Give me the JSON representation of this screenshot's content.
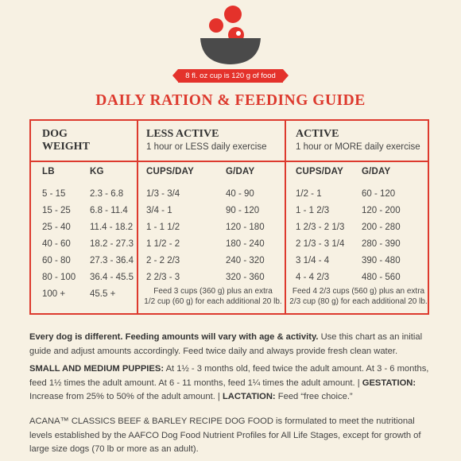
{
  "header": {
    "ribbon_text": "8 fl. oz cup is 120 g of food",
    "title": "DAILY RATION & FEEDING GUIDE",
    "icon": "bowl-icon",
    "colors": {
      "accent": "#dd3a2e",
      "bowl": "#4a4a4a",
      "background": "#f7f1e3"
    }
  },
  "table": {
    "weight_header_line1": "DOG",
    "weight_header_line2": "WEIGHT",
    "less_active": {
      "title": "LESS ACTIVE",
      "subtitle": "1 hour or LESS daily exercise"
    },
    "active": {
      "title": "ACTIVE",
      "subtitle": "1 hour or MORE daily exercise"
    },
    "col_lb": "LB",
    "col_kg": "KG",
    "col_cups_less": "CUPS/DAY",
    "col_g_less": "G/DAY",
    "col_cups_active": "CUPS/DAY",
    "col_g_active": "G/DAY",
    "rows": [
      {
        "lb": "5 - 15",
        "kg": "2.3 - 6.8",
        "less_cups": "1/3 - 3/4",
        "less_g": "40 - 90",
        "act_cups": "1/2 - 1",
        "act_g": "60 - 120"
      },
      {
        "lb": "15 - 25",
        "kg": "6.8 - 11.4",
        "less_cups": "3/4 - 1",
        "less_g": "90 - 120",
        "act_cups": "1 - 1 2/3",
        "act_g": "120 - 200"
      },
      {
        "lb": "25 - 40",
        "kg": "11.4 - 18.2",
        "less_cups": "1 - 1 1/2",
        "less_g": "120 - 180",
        "act_cups": "1 2/3 - 2 1/3",
        "act_g": "200 - 280"
      },
      {
        "lb": "40 - 60",
        "kg": "18.2 - 27.3",
        "less_cups": "1 1/2 - 2",
        "less_g": "180 - 240",
        "act_cups": "2 1/3 - 3 1/4",
        "act_g": "280 - 390"
      },
      {
        "lb": "60 - 80",
        "kg": "27.3 - 36.4",
        "less_cups": "2 - 2 2/3",
        "less_g": "240 - 320",
        "act_cups": "3 1/4 - 4",
        "act_g": "390 - 480"
      },
      {
        "lb": "80 - 100",
        "kg": "36.4 - 45.5",
        "less_cups": "2 2/3 - 3",
        "less_g": "320 - 360",
        "act_cups": "4 - 4 2/3",
        "act_g": "480 - 560"
      },
      {
        "lb": "100 +",
        "kg": "45.5 +",
        "less_cups": "",
        "less_g": "",
        "act_cups": "",
        "act_g": ""
      }
    ],
    "less_note_line1": "Feed 3 cups (360 g) plus an extra",
    "less_note_line2": "1/2 cup (60 g) for each additional 20 lb.",
    "active_note_line1": "Feed 4 2/3 cups (560 g) plus an extra",
    "active_note_line2": "2/3 cup (80 g) for each additional 20 lb."
  },
  "text": {
    "intro_bold": "Every dog is different. Feeding amounts will vary with age & activity.",
    "intro_rest": " Use this chart as an initial guide and adjust amounts accordingly. Feed twice daily and always provide fresh clean water.",
    "puppies_label": "SMALL AND MEDIUM PUPPIES:",
    "puppies_text": " At 1½ - 3 months old, feed twice the adult amount. At 3 - 6 months, feed 1½ times the adult amount. At 6 - 11 months, feed 1¼ times the adult amount.  |  ",
    "gestation_label": "GESTATION:",
    "gestation_text": " Increase from 25% to 50% of the adult amount.  |  ",
    "lactation_label": "LACTATION:",
    "lactation_text": " Feed “free choice.”",
    "footer": "ACANA™ CLASSICS BEEF & BARLEY RECIPE DOG FOOD is formulated to meet the nutritional levels established by the AAFCO Dog Food Nutrient Profiles for All Life Stages, except for growth of large size dogs (70 lb or more as an adult)."
  }
}
